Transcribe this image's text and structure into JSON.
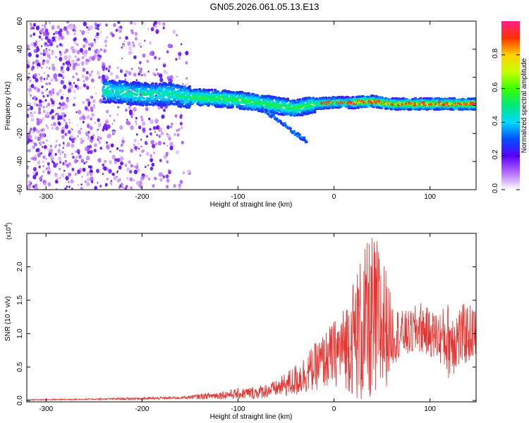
{
  "title": "GN05.2026.061.05.13.E13",
  "chart_data": [
    {
      "type": "heatmap",
      "name": "spectrogram",
      "xlabel": "Height of straight line (km)",
      "ylabel": "Frequency (Hz)",
      "xlim": [
        -320,
        148
      ],
      "ylim": [
        -60,
        60
      ],
      "xticks": [
        -300,
        -200,
        -100,
        0,
        100
      ],
      "yticks": [
        -60,
        -40,
        -20,
        0,
        20,
        40,
        60
      ],
      "ridge": {
        "x": [
          -230,
          -200,
          -170,
          -150,
          -120,
          -100,
          -80,
          -60,
          -40,
          -20,
          0,
          20,
          40,
          60,
          80,
          100,
          120,
          148
        ],
        "freq": [
          10,
          8,
          8,
          6,
          5,
          4,
          2,
          0,
          -2,
          1,
          2,
          2,
          3,
          1,
          1,
          1,
          1,
          1
        ]
      },
      "colorbar": {
        "label": "Normalized spectral amplitude",
        "range": [
          0,
          1
        ],
        "ticks": [
          "0.0",
          "0.2",
          "0.4",
          "0.6",
          "0.8"
        ],
        "tick_values": [
          0,
          0.2,
          0.4,
          0.6,
          0.8
        ]
      }
    },
    {
      "type": "line",
      "name": "snr",
      "xlabel": "Height of straight line (km)",
      "ylabel": "SNR (10 * v/v)",
      "multiplier": "(x10",
      "multiplier_exp": "4",
      "xlim": [
        -320,
        148
      ],
      "ylim": [
        -0.02,
        2.5
      ],
      "xticks": [
        -300,
        -200,
        -100,
        0,
        100
      ],
      "yticks": [
        "0.0",
        "0.5",
        "1.0",
        "1.5",
        "2.0"
      ],
      "ytick_values": [
        0,
        0.5,
        1.0,
        1.5,
        2.0
      ],
      "series": [
        {
          "name": "SNR",
          "color": "#e8322e",
          "envelope_x": [
            -320,
            -250,
            -200,
            -160,
            -140,
            -120,
            -100,
            -80,
            -60,
            -40,
            -20,
            0,
            10,
            20,
            30,
            40,
            50,
            60,
            70,
            80,
            90,
            100,
            110,
            120,
            130,
            140,
            148
          ],
          "envelope_mean": [
            0.01,
            0.02,
            0.03,
            0.04,
            0.06,
            0.08,
            0.1,
            0.12,
            0.18,
            0.3,
            0.5,
            0.7,
            0.8,
            0.95,
            1.05,
            1.1,
            1.15,
            1.0,
            1.0,
            1.0,
            1.1,
            1.0,
            0.95,
            0.9,
            0.95,
            1.0,
            1.0
          ],
          "envelope_amp": [
            0.01,
            0.01,
            0.02,
            0.02,
            0.04,
            0.06,
            0.08,
            0.1,
            0.12,
            0.25,
            0.35,
            0.5,
            0.6,
            0.9,
            1.2,
            1.4,
            1.2,
            0.5,
            0.35,
            0.35,
            0.4,
            0.35,
            0.4,
            0.6,
            0.5,
            0.45,
            0.4
          ]
        }
      ]
    }
  ]
}
